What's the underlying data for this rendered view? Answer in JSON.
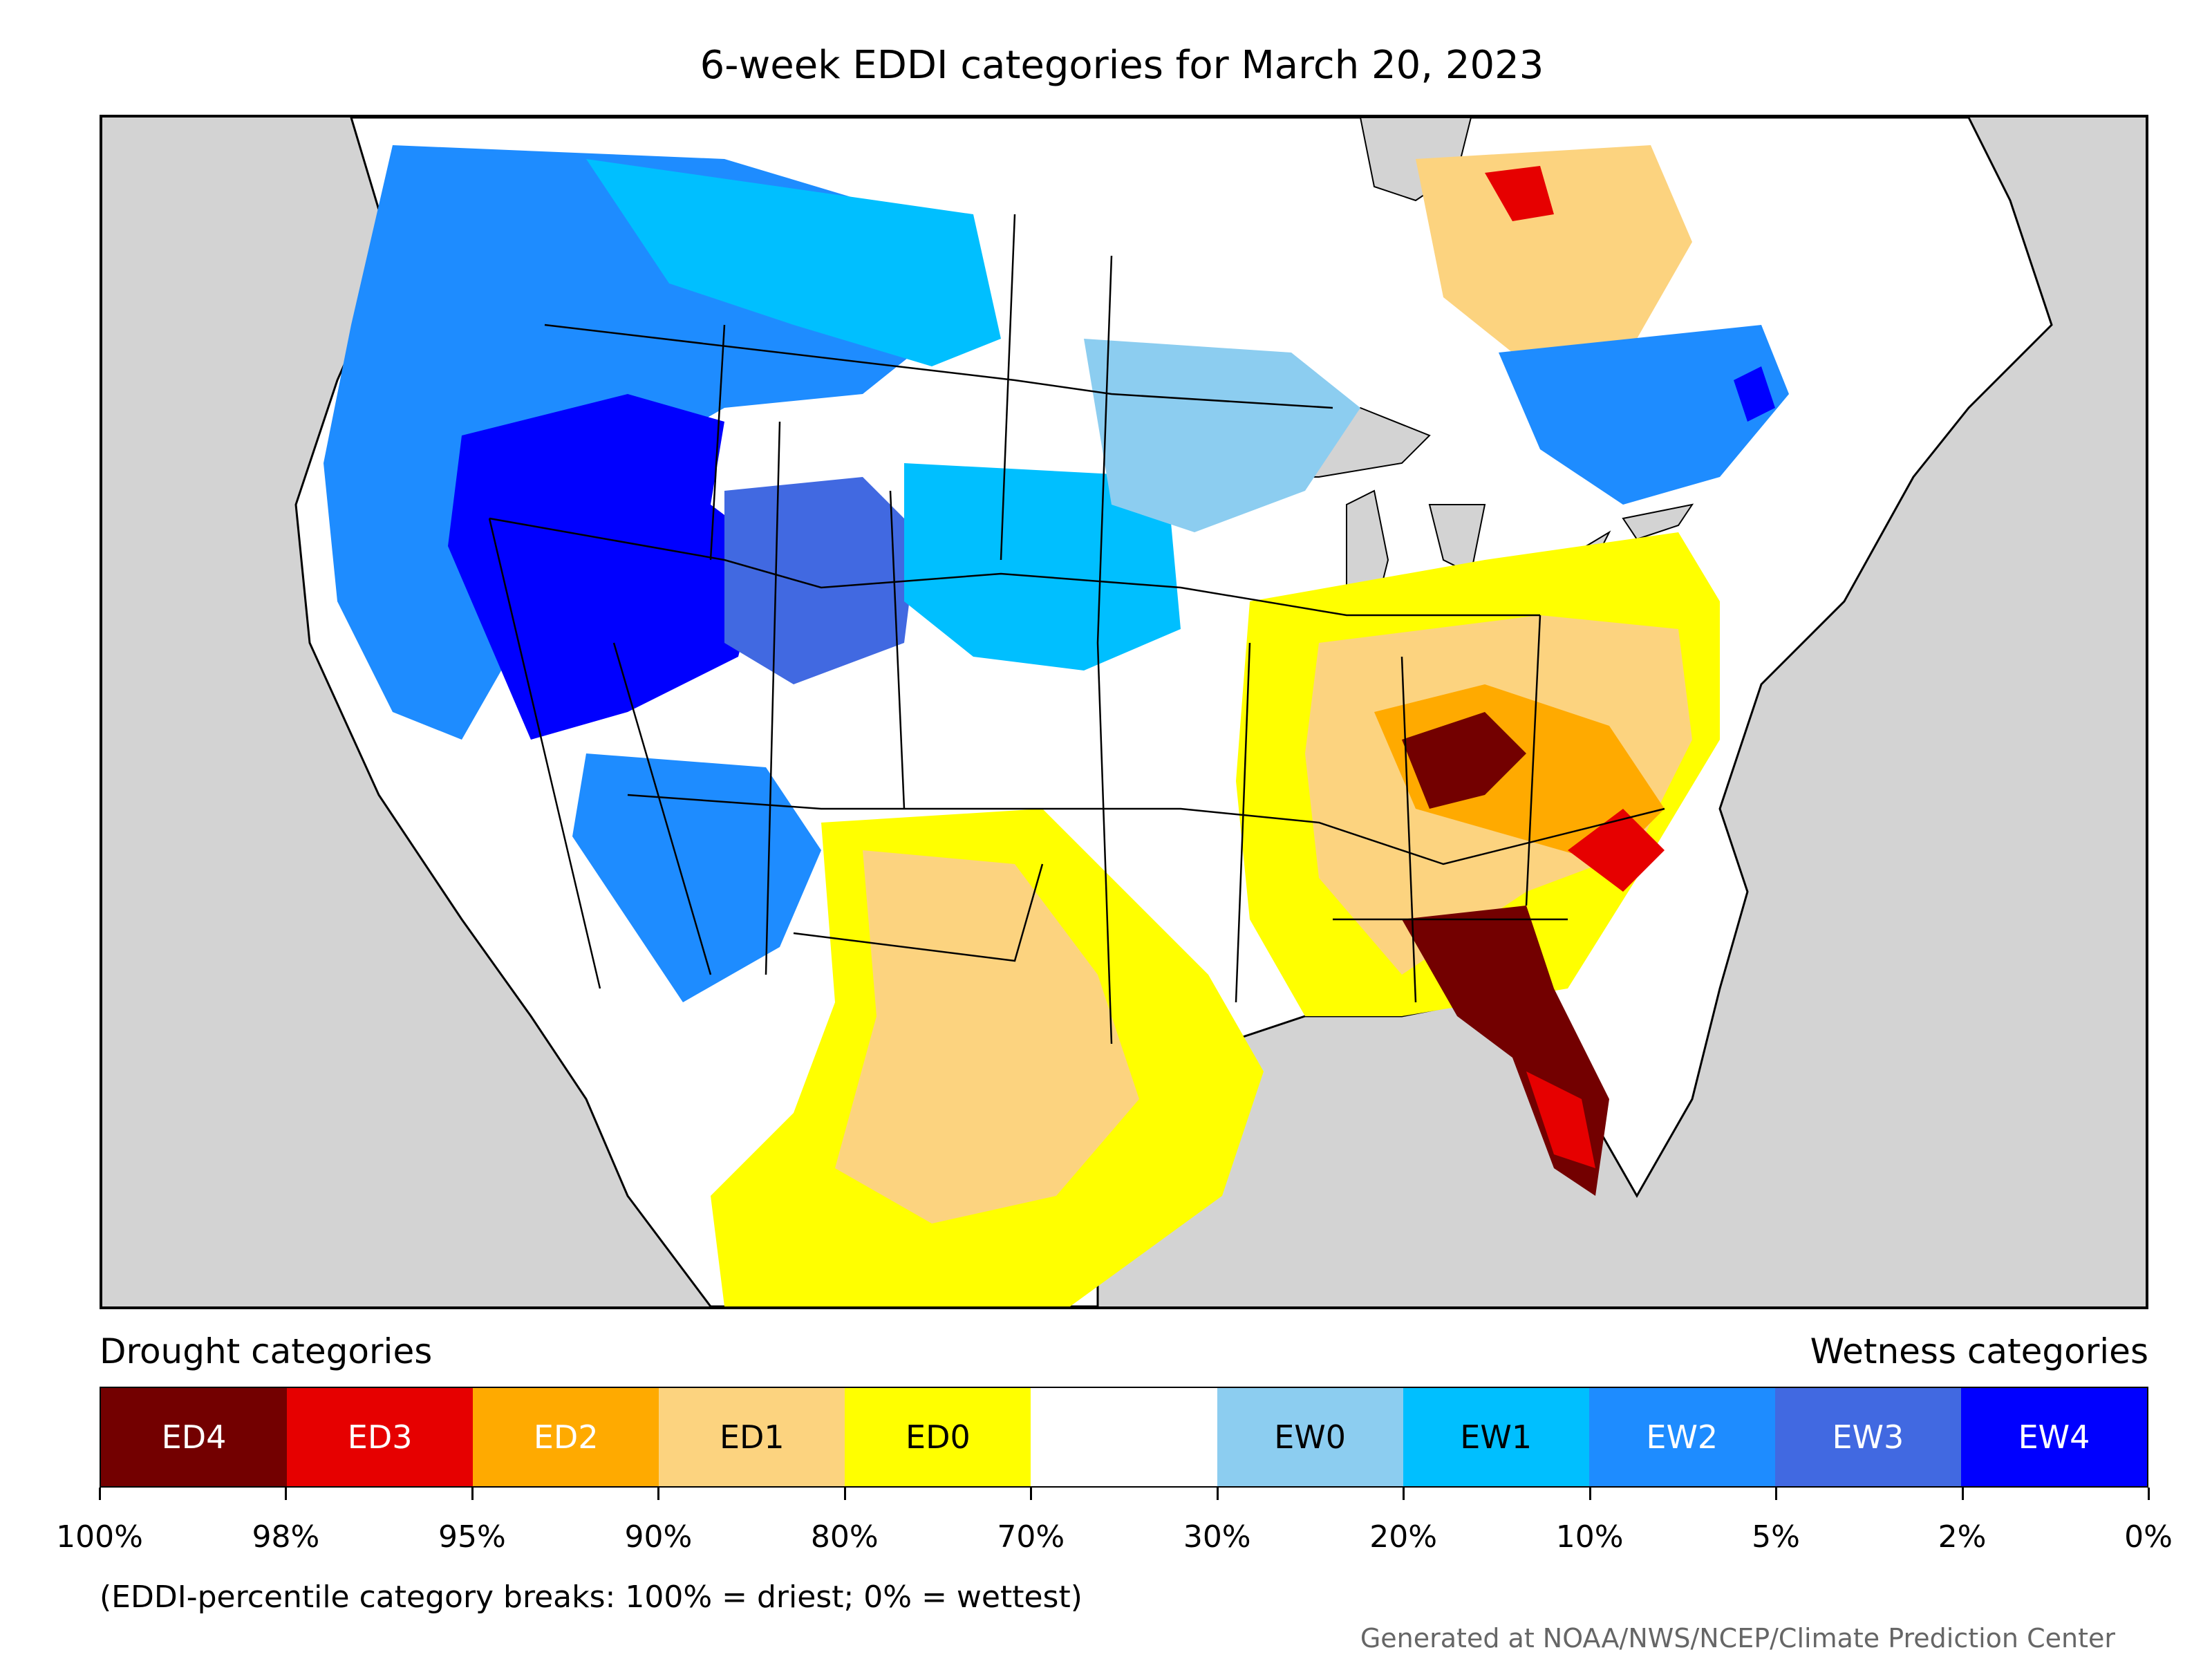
{
  "title": "6-week EDDI categories for March 20, 2023",
  "legend": {
    "drought_heading": "Drought categories",
    "wetness_heading": "Wetness categories",
    "categories": [
      {
        "label": "ED4",
        "color": "#730000",
        "text_color": "#ffffff"
      },
      {
        "label": "ED3",
        "color": "#e60000",
        "text_color": "#ffffff"
      },
      {
        "label": "ED2",
        "color": "#ffaa00",
        "text_color": "#ffffff"
      },
      {
        "label": "ED1",
        "color": "#fcd37f",
        "text_color": "#000000"
      },
      {
        "label": "ED0",
        "color": "#ffff00",
        "text_color": "#000000"
      },
      {
        "label": "",
        "color": "#ffffff",
        "text_color": "#000000"
      },
      {
        "label": "EW0",
        "color": "#8ccdf0",
        "text_color": "#000000"
      },
      {
        "label": "EW1",
        "color": "#00bfff",
        "text_color": "#000000"
      },
      {
        "label": "EW2",
        "color": "#1e8cff",
        "text_color": "#ffffff"
      },
      {
        "label": "EW3",
        "color": "#4169e1",
        "text_color": "#ffffff"
      },
      {
        "label": "EW4",
        "color": "#0000ff",
        "text_color": "#ffffff"
      }
    ],
    "tick_labels": [
      "100%",
      "98%",
      "95%",
      "90%",
      "80%",
      "70%",
      "30%",
      "20%",
      "10%",
      "5%",
      "2%",
      "0%"
    ]
  },
  "note": "(EDDI-percentile category breaks: 100% = driest; 0% = wettest)",
  "credit": "Generated at NOAA/NWS/NCEP/Climate Prediction Center",
  "map": {
    "background_color": "#d3d3d3",
    "land_color": "#ffffff",
    "lake_color": "#d3d3d3",
    "regions": [
      {
        "name": "pacific-northwest",
        "category": "EW2"
      },
      {
        "name": "great-basin",
        "category": "EW4"
      },
      {
        "name": "northern-rockies",
        "category": "EW3"
      },
      {
        "name": "northern-plains",
        "category": "EW1"
      },
      {
        "name": "upper-midwest",
        "category": "EW0"
      },
      {
        "name": "canadian-prairies",
        "category": "EW1"
      },
      {
        "name": "texas",
        "category": "ED1"
      },
      {
        "name": "southern-plains",
        "category": "ED0"
      },
      {
        "name": "ohio-valley",
        "category": "ED1"
      },
      {
        "name": "kentucky-core",
        "category": "ED4"
      },
      {
        "name": "carolinas",
        "category": "ED2"
      },
      {
        "name": "florida-georgia",
        "category": "ED4"
      },
      {
        "name": "quebec",
        "category": "ED1"
      },
      {
        "name": "new-england",
        "category": "EW2"
      }
    ]
  }
}
